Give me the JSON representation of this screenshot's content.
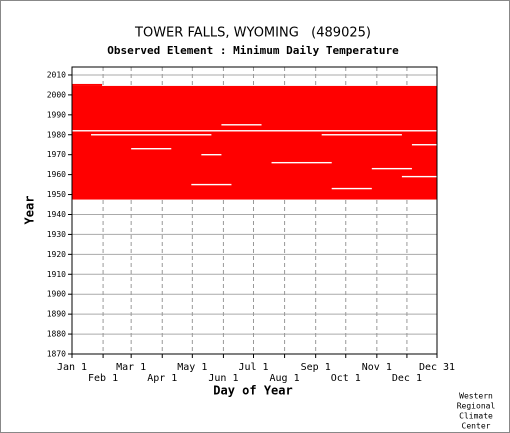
{
  "chart_data": {
    "type": "availability",
    "title": "TOWER FALLS, WYOMING   (489025)",
    "subtitle": "Observed Element : Minimum Daily Temperature",
    "x_label": "Day of Year",
    "y_label": "Year",
    "credit": [
      "Western",
      "Regional",
      "Climate",
      "Center"
    ],
    "color": "#ff0000",
    "xlim": [
      1,
      365
    ],
    "ylim": [
      1870,
      2014
    ],
    "xticks": [
      {
        "value": 1,
        "label": "Jan 1"
      },
      {
        "value": 32,
        "label": "Feb 1"
      },
      {
        "value": 60,
        "label": "Mar 1"
      },
      {
        "value": 91,
        "label": "Apr 1"
      },
      {
        "value": 121,
        "label": "May 1"
      },
      {
        "value": 152,
        "label": "Jun 1"
      },
      {
        "value": 182,
        "label": "Jul 1"
      },
      {
        "value": 213,
        "label": "Aug 1"
      },
      {
        "value": 244,
        "label": "Sep 1"
      },
      {
        "value": 274,
        "label": "Oct 1"
      },
      {
        "value": 305,
        "label": "Nov 1"
      },
      {
        "value": 335,
        "label": "Dec 1"
      },
      {
        "value": 365,
        "label": "Dec 31"
      }
    ],
    "yticks": [
      1870,
      1880,
      1890,
      1900,
      1910,
      1920,
      1930,
      1940,
      1950,
      1960,
      1970,
      1980,
      1990,
      2000,
      2010
    ],
    "coverage": [
      {
        "years": [
          1948,
          2004
        ],
        "days": [
          1,
          365
        ]
      },
      {
        "years": [
          2005,
          2005
        ],
        "days": [
          1,
          31
        ]
      }
    ],
    "gaps": [
      {
        "year": 1982,
        "days": [
          1,
          365
        ]
      },
      {
        "year": 1980,
        "days": [
          20,
          140
        ]
      },
      {
        "year": 1980,
        "days": [
          250,
          330
        ]
      },
      {
        "year": 1985,
        "days": [
          150,
          190
        ]
      },
      {
        "year": 1973,
        "days": [
          60,
          100
        ]
      },
      {
        "year": 1970,
        "days": [
          130,
          150
        ]
      },
      {
        "year": 1966,
        "days": [
          200,
          260
        ]
      },
      {
        "year": 1963,
        "days": [
          300,
          340
        ]
      },
      {
        "year": 1959,
        "days": [
          330,
          365
        ]
      },
      {
        "year": 1955,
        "days": [
          120,
          160
        ]
      },
      {
        "year": 1975,
        "days": [
          340,
          365
        ]
      },
      {
        "year": 1953,
        "days": [
          260,
          300
        ]
      }
    ],
    "gap_color": "#ffffff"
  }
}
